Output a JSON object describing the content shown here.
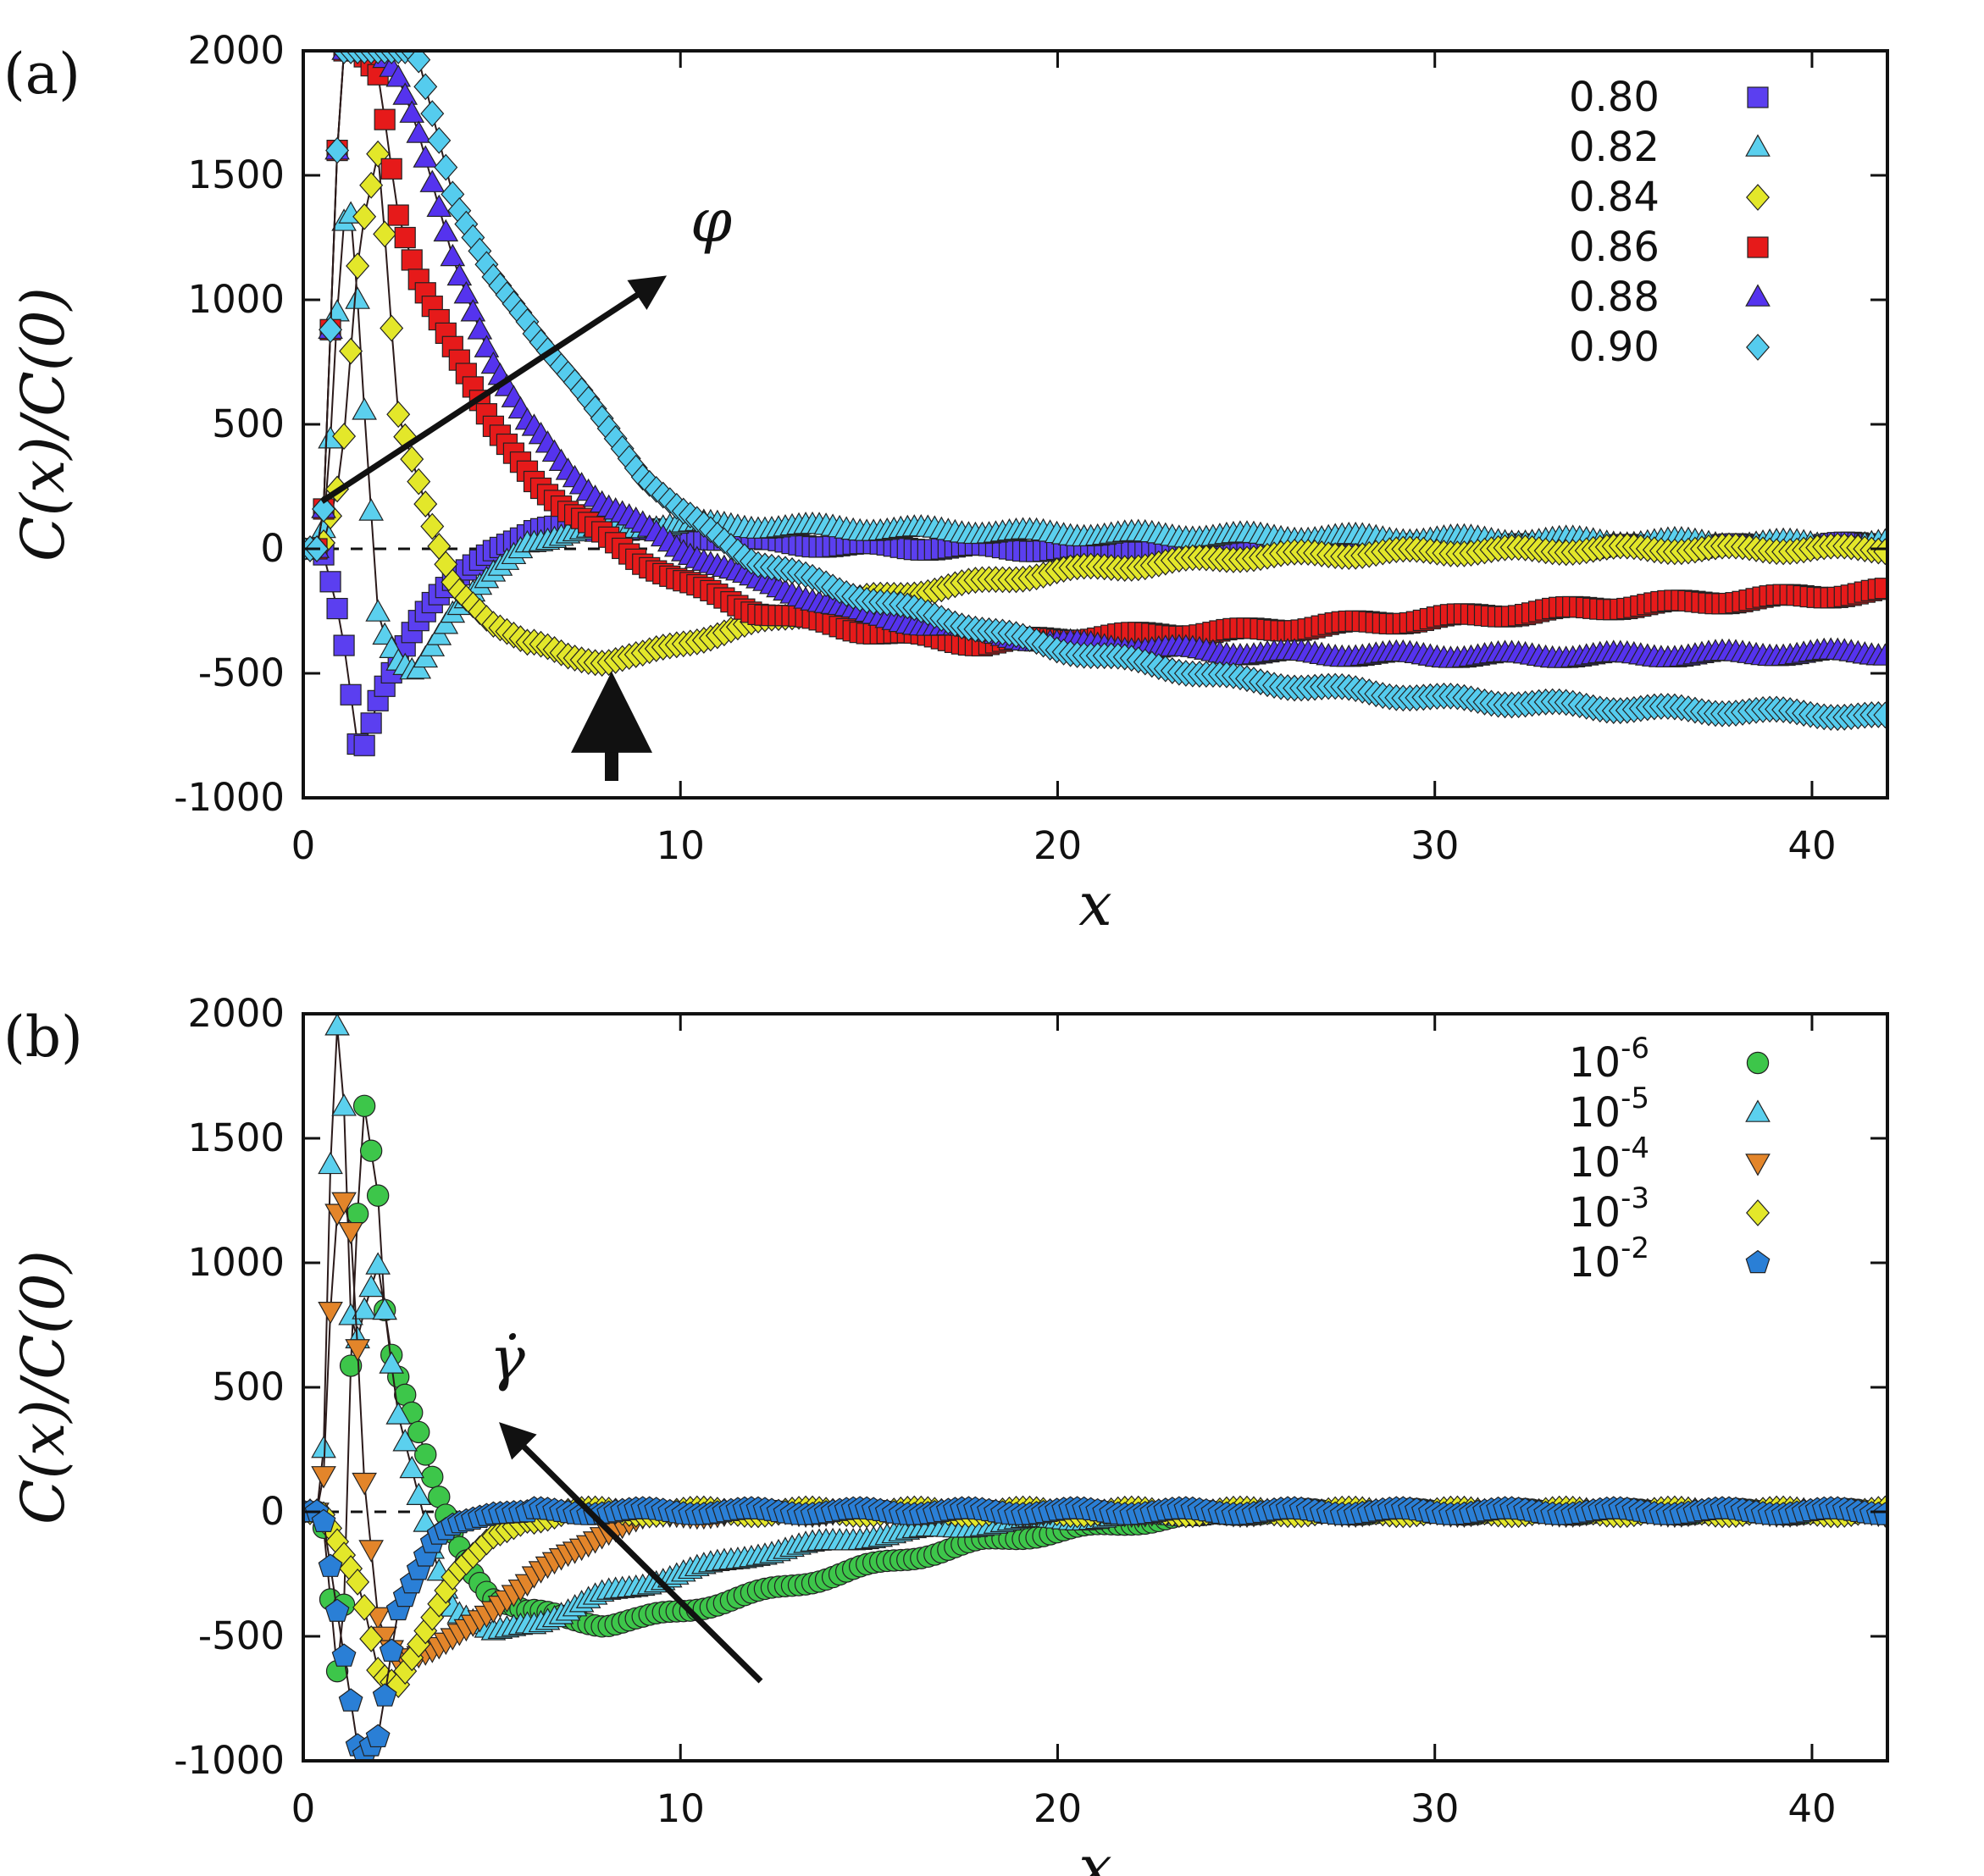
{
  "chart_data": [
    {
      "type": "scatter",
      "panel_label": "(a)",
      "xlabel": "x",
      "ylabel": "C(x)/C(0)",
      "xlim": [
        0,
        42
      ],
      "ylim": [
        -1000,
        2000
      ],
      "xticks": [
        0,
        10,
        20,
        30,
        40
      ],
      "yticks": [
        -1000,
        -500,
        0,
        500,
        1000,
        1500,
        2000
      ],
      "grid": false,
      "legend_position": "top-right",
      "zero_line": "dashed",
      "annotation": "φ",
      "series": [
        {
          "name": "0.80",
          "color": "#5b3ff0",
          "marker": "square",
          "x": [
            0,
            0.5,
            1,
            1.5,
            2,
            2.5,
            3,
            3.5,
            4,
            5,
            6,
            7,
            8,
            10,
            12,
            15,
            20,
            25,
            30,
            35,
            40,
            42
          ],
          "y": [
            0,
            0,
            -300,
            -850,
            -600,
            -450,
            -300,
            -200,
            -120,
            -10,
            60,
            90,
            80,
            60,
            30,
            10,
            0,
            -5,
            10,
            5,
            10,
            20
          ]
        },
        {
          "name": "0.82",
          "color": "#5bd0ee",
          "marker": "triangle-up",
          "x": [
            0,
            0.5,
            0.8,
            1,
            1.3,
            1.6,
            2,
            2.5,
            3,
            4,
            5,
            6,
            7,
            8,
            10,
            12,
            15,
            20,
            25,
            30,
            35,
            40,
            42
          ],
          "y": [
            0,
            0,
            600,
            1300,
            1350,
            600,
            -300,
            -450,
            -500,
            -250,
            -100,
            30,
            60,
            80,
            100,
            90,
            80,
            60,
            50,
            40,
            30,
            20,
            20
          ]
        },
        {
          "name": "0.84",
          "color": "#e3e72a",
          "marker": "diamond",
          "x": [
            0,
            0.5,
            1,
            1.5,
            2,
            2.5,
            3,
            3.5,
            4,
            5,
            6,
            7,
            8,
            9,
            10,
            12,
            15,
            20,
            25,
            30,
            35,
            40,
            42
          ],
          "y": [
            0,
            0,
            300,
            1250,
            1600,
            550,
            300,
            50,
            -150,
            -300,
            -380,
            -430,
            -450,
            -430,
            -380,
            -300,
            -200,
            -90,
            -30,
            -10,
            0,
            0,
            0
          ]
        },
        {
          "name": "0.86",
          "color": "#e61a1a",
          "marker": "square",
          "x": [
            0,
            0.5,
            1,
            1.5,
            2,
            2.5,
            3,
            4,
            5,
            6,
            7,
            8,
            9,
            10,
            12,
            15,
            18,
            20,
            25,
            30,
            35,
            40,
            42
          ],
          "y": [
            0,
            0,
            2000,
            2000,
            1900,
            1350,
            1100,
            800,
            500,
            300,
            150,
            50,
            -50,
            -130,
            -250,
            -330,
            -380,
            -360,
            -330,
            -280,
            -230,
            -190,
            -170
          ]
        },
        {
          "name": "0.88",
          "color": "#5533ee",
          "marker": "triangle-up",
          "x": [
            0,
            0.5,
            1,
            1.5,
            2,
            2.5,
            3,
            4,
            5,
            6,
            7,
            8,
            10,
            12,
            15,
            20,
            25,
            30,
            35,
            40,
            42
          ],
          "y": [
            0,
            0,
            2000,
            2000,
            2000,
            1900,
            1700,
            1150,
            750,
            500,
            320,
            180,
            0,
            -130,
            -270,
            -380,
            -420,
            -430,
            -430,
            -420,
            -420
          ]
        },
        {
          "name": "0.90",
          "color": "#55ccee",
          "marker": "diamond",
          "x": [
            0,
            0.5,
            1,
            1.5,
            2,
            2.5,
            3,
            4,
            5,
            6,
            7,
            8,
            9,
            10,
            12,
            15,
            20,
            25,
            30,
            35,
            40,
            42
          ],
          "y": [
            0,
            0,
            2000,
            2000,
            2000,
            2000,
            2000,
            1400,
            1100,
            900,
            700,
            500,
            300,
            150,
            -50,
            -200,
            -400,
            -530,
            -600,
            -640,
            -660,
            -680
          ]
        }
      ]
    },
    {
      "type": "scatter",
      "panel_label": "(b)",
      "xlabel": "x",
      "ylabel": "C(x)/C(0)",
      "xlim": [
        0,
        42
      ],
      "ylim": [
        -1000,
        2000
      ],
      "xticks": [
        0,
        10,
        20,
        30,
        40
      ],
      "yticks": [
        -1000,
        -500,
        0,
        500,
        1000,
        1500,
        2000
      ],
      "grid": false,
      "legend_position": "top-right",
      "zero_line": "dashed",
      "annotation": "γ̇",
      "series": [
        {
          "name": "10",
          "exponent": "-6",
          "color": "#3dc64a",
          "marker": "circle",
          "x": [
            0,
            0.5,
            1,
            1.3,
            1.6,
            2,
            2.2,
            2.5,
            3,
            3.5,
            4,
            4.5,
            5,
            6,
            7,
            8,
            9,
            10,
            12,
            15,
            18,
            20,
            22,
            25,
            30,
            35,
            40,
            42
          ],
          "y": [
            0,
            0,
            -800,
            800,
            1650,
            1250,
            700,
            550,
            350,
            100,
            -100,
            -250,
            -350,
            -400,
            -430,
            -450,
            -430,
            -400,
            -330,
            -220,
            -120,
            -80,
            -40,
            0,
            0,
            0,
            0,
            0
          ]
        },
        {
          "name": "10",
          "exponent": "-5",
          "color": "#5bd0ee",
          "marker": "triangle-up",
          "x": [
            0,
            0.5,
            0.8,
            1,
            1.3,
            1.6,
            2,
            2.5,
            3,
            3.5,
            4,
            5,
            6,
            7,
            8,
            10,
            12,
            15,
            18,
            20,
            25,
            30,
            35,
            40,
            42
          ],
          "y": [
            0,
            0,
            1900,
            2000,
            600,
            800,
            1000,
            400,
            100,
            -200,
            -400,
            -480,
            -450,
            -400,
            -330,
            -250,
            -170,
            -100,
            -50,
            -30,
            0,
            0,
            0,
            0,
            0
          ]
        },
        {
          "name": "10",
          "exponent": "-4",
          "color": "#e3852a",
          "marker": "triangle-down",
          "x": [
            0,
            0.5,
            0.8,
            1,
            1.3,
            1.6,
            2,
            2.5,
            3,
            3.5,
            4,
            5,
            6,
            7,
            8,
            9,
            10,
            12,
            15,
            20,
            25,
            30,
            35,
            40,
            42
          ],
          "y": [
            0,
            0,
            1100,
            1300,
            1100,
            150,
            -450,
            -600,
            -580,
            -550,
            -500,
            -400,
            -280,
            -170,
            -80,
            -30,
            -10,
            0,
            0,
            0,
            0,
            0,
            0,
            0,
            0
          ]
        },
        {
          "name": "10",
          "exponent": "-3",
          "color": "#e3e72a",
          "marker": "diamond",
          "x": [
            0,
            0.5,
            1,
            1.5,
            2,
            2.5,
            3,
            3.5,
            4,
            5,
            6,
            7,
            8,
            10,
            12,
            15,
            20,
            25,
            30,
            35,
            40,
            42
          ],
          "y": [
            0,
            0,
            -150,
            -300,
            -650,
            -700,
            -550,
            -400,
            -250,
            -100,
            -30,
            0,
            0,
            0,
            0,
            0,
            0,
            0,
            0,
            0,
            0,
            0
          ]
        },
        {
          "name": "10",
          "exponent": "-2",
          "color": "#2a7fd6",
          "marker": "pentagon",
          "x": [
            0,
            0.5,
            1,
            1.5,
            2,
            2.5,
            3,
            3.5,
            4,
            5,
            6,
            8,
            10,
            15,
            20,
            25,
            30,
            35,
            40,
            42
          ],
          "y": [
            0,
            0,
            -500,
            -1000,
            -900,
            -400,
            -250,
            -100,
            -50,
            -10,
            0,
            0,
            0,
            0,
            0,
            0,
            0,
            0,
            0,
            0
          ]
        }
      ]
    }
  ]
}
